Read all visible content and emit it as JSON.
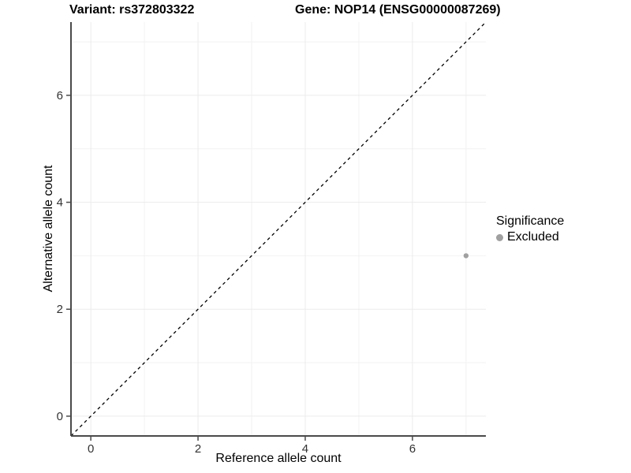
{
  "header": {
    "variant_title": "Variant: rs372803322",
    "gene_title": "Gene: NOP14 (ENSG00000087269)"
  },
  "chart_data": {
    "type": "scatter",
    "title_left": "Variant: rs372803322",
    "title_right": "Gene: NOP14 (ENSG00000087269)",
    "xlabel": "Reference allele count",
    "ylabel": "Alternative allele count",
    "xlim": [
      -0.37,
      7.37
    ],
    "ylim": [
      -0.37,
      7.37
    ],
    "x_major_ticks": [
      0,
      2,
      4,
      6
    ],
    "y_major_ticks": [
      0,
      2,
      4,
      6
    ],
    "x_minor_ticks": [
      1,
      3,
      5,
      7
    ],
    "y_minor_ticks": [
      1,
      3,
      5,
      7
    ],
    "grid": true,
    "legend_position": "right",
    "identity_line": {
      "style": "dashed",
      "from": -0.37,
      "to": 7.37
    },
    "series": [
      {
        "name": "Excluded",
        "color": "#a0a0a0",
        "points": [
          {
            "x": 7,
            "y": 3
          }
        ]
      }
    ],
    "legend": {
      "title": "Significance",
      "entries": [
        {
          "label": "Excluded",
          "color": "#a0a0a0"
        }
      ]
    },
    "colors": {
      "background": "#ffffff",
      "grid_major": "#ebebeb",
      "grid_minor": "#f2f2f2",
      "axis_line": "#4a4a4a",
      "tick_label": "#333333",
      "identity_line": "#000000"
    }
  }
}
